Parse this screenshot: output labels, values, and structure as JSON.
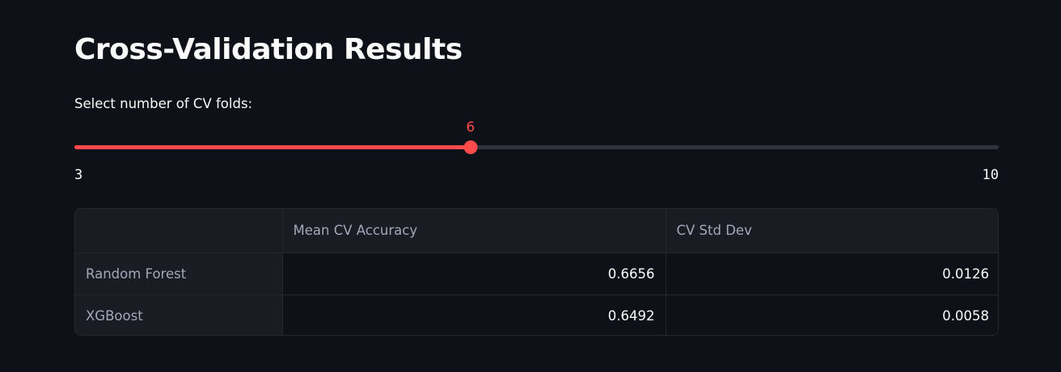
{
  "page": {
    "title": "Cross-Validation Results"
  },
  "slider": {
    "label": "Select number of CV folds:",
    "min": 3,
    "max": 10,
    "value": 6,
    "min_label": "3",
    "max_label": "10",
    "value_label": "6",
    "accent_color": "#ff4b4b",
    "track_color": "#31333f"
  },
  "table": {
    "columns": [
      "",
      "Mean CV Accuracy",
      "CV Std Dev"
    ],
    "rows": [
      {
        "label": "Random Forest",
        "mean_cv_accuracy": "0.6656",
        "cv_std_dev": "0.0126"
      },
      {
        "label": "XGBoost",
        "mean_cv_accuracy": "0.6492",
        "cv_std_dev": "0.0058"
      }
    ]
  }
}
